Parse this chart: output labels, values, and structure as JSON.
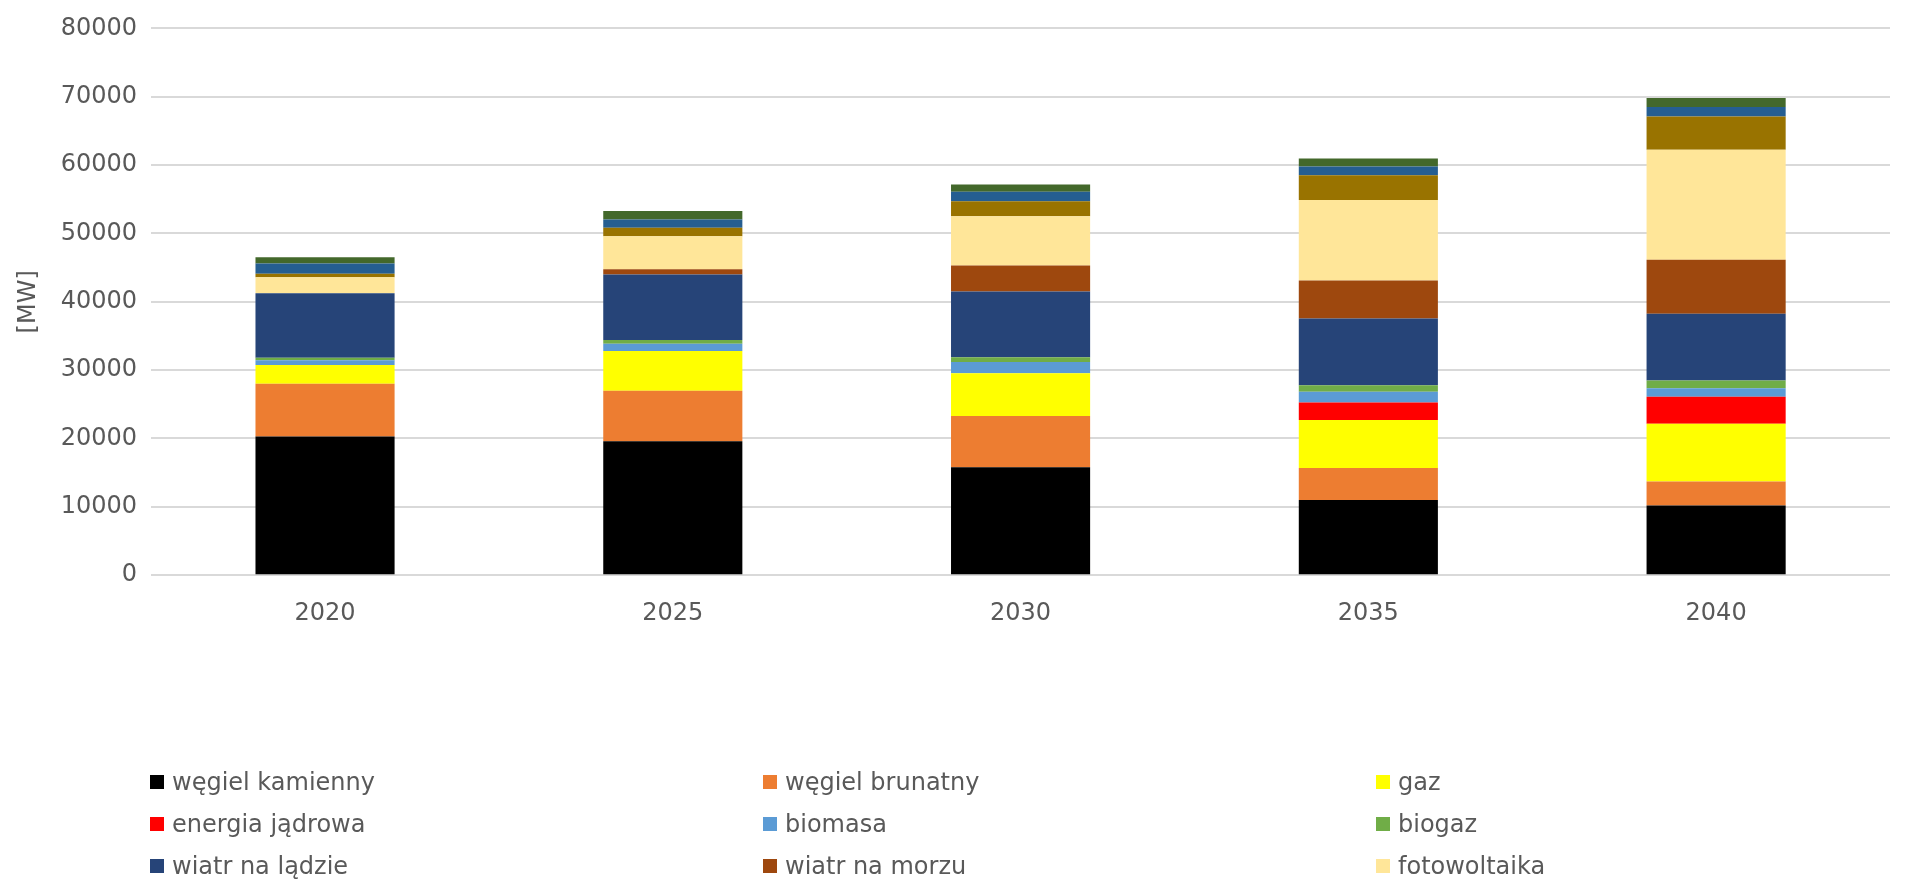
{
  "chart_data": {
    "type": "bar",
    "stacked": true,
    "ylabel": "[MW]",
    "categories": [
      "2020",
      "2025",
      "2030",
      "2035",
      "2040"
    ],
    "ylim": [
      0,
      80000
    ],
    "yticks": [
      0,
      10000,
      20000,
      30000,
      40000,
      50000,
      60000,
      70000,
      80000
    ],
    "grid": "y",
    "legend": "bottom",
    "series": [
      {
        "name": "węgiel kamienny",
        "color": "#000000",
        "values": [
          20300,
          19600,
          15800,
          11000,
          10200
        ]
      },
      {
        "name": "węgiel brunatny",
        "color": "#ed7d31",
        "values": [
          7700,
          7400,
          7500,
          4700,
          3500
        ]
      },
      {
        "name": "gaz",
        "color": "#ffff00",
        "values": [
          2750,
          5800,
          6250,
          7000,
          8450
        ]
      },
      {
        "name": "energia jądrowa",
        "color": "#ff0000",
        "values": [
          0,
          0,
          0,
          2550,
          3950
        ]
      },
      {
        "name": "biomasa",
        "color": "#5b9bd5",
        "values": [
          700,
          1050,
          1650,
          1600,
          1250
        ]
      },
      {
        "name": "biogaz",
        "color": "#70ad47",
        "values": [
          350,
          550,
          700,
          950,
          1150
        ]
      },
      {
        "name": "wiatr na lądzie",
        "color": "#264478",
        "values": [
          9450,
          9600,
          9600,
          9750,
          9750
        ]
      },
      {
        "name": "wiatr na morzu",
        "color": "#9e480e",
        "values": [
          0,
          750,
          3800,
          5550,
          7900
        ]
      },
      {
        "name": "fotowoltaika",
        "color": "#ffe699",
        "values": [
          2350,
          4850,
          7200,
          11800,
          16100
        ]
      },
      {
        "color": "#997300",
        "values": [
          500,
          1250,
          2200,
          3600,
          4850
        ]
      },
      {
        "color": "#255e91",
        "values": [
          1500,
          1200,
          1400,
          1300,
          1400
        ]
      },
      {
        "color": "#43682b",
        "values": [
          900,
          1250,
          1050,
          1150,
          1300
        ]
      }
    ]
  }
}
